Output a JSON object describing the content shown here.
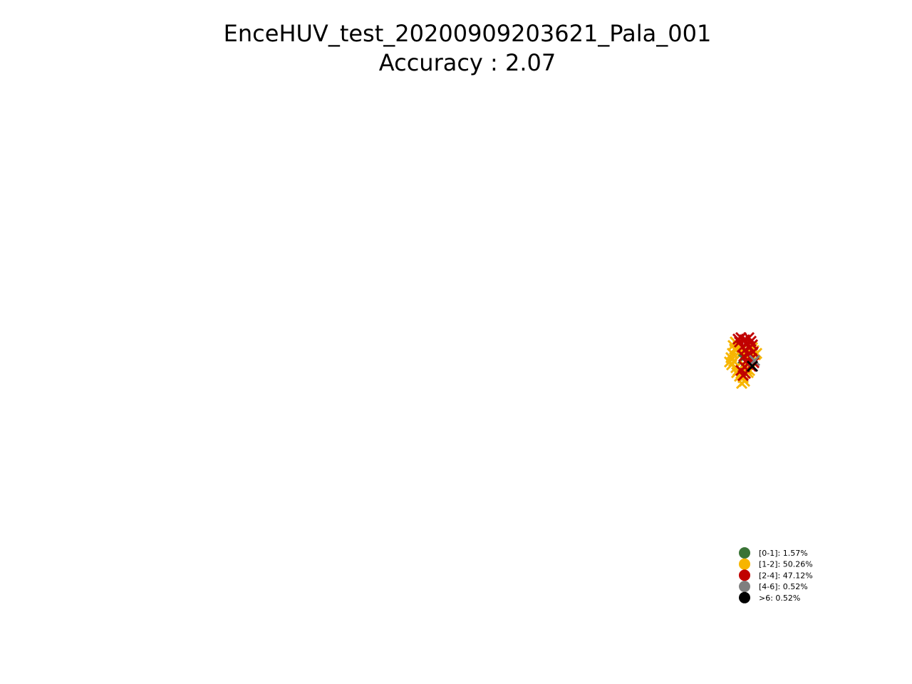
{
  "chart_data": {
    "type": "scatter",
    "title": "EnceHUV_test_20200909203621_Pala_001",
    "subtitle": "Accuracy : 2.07",
    "xlabel": "",
    "ylabel": "",
    "grid": false,
    "axes_visible": false,
    "legend_placement": "bottom-right",
    "legend": [
      {
        "label": "[0-1]: 1.57%",
        "color": "#3a7336"
      },
      {
        "label": "[1-2]: 50.26%",
        "color": "#f7b500"
      },
      {
        "label": "[2-4]: 47.12%",
        "color": "#c00000"
      },
      {
        "label": "[4-6]: 0.52%",
        "color": "#7f7f7f"
      },
      {
        "label": ">6: 0.52%",
        "color": "#000000"
      }
    ],
    "marker": "x",
    "series": [
      {
        "category": "[0-1]",
        "color": "#3a7336",
        "points": [
          [
            1043,
            503
          ],
          [
            1039,
            498
          ],
          [
            1047,
            508
          ]
        ]
      },
      {
        "category": "[1-2]",
        "color": "#f7b500",
        "points": [
          [
            1029,
            485
          ],
          [
            1031,
            490
          ],
          [
            1028,
            496
          ],
          [
            1026,
            502
          ],
          [
            1030,
            507
          ],
          [
            1027,
            512
          ],
          [
            1033,
            516
          ],
          [
            1036,
            520
          ],
          [
            1040,
            524
          ],
          [
            1043,
            530
          ],
          [
            1045,
            535
          ],
          [
            1038,
            528
          ],
          [
            1034,
            523
          ],
          [
            1052,
            504
          ],
          [
            1055,
            498
          ],
          [
            1058,
            492
          ],
          [
            1060,
            498
          ],
          [
            1048,
            518
          ],
          [
            1050,
            523
          ],
          [
            1046,
            514
          ],
          [
            1032,
            480
          ],
          [
            1036,
            486
          ],
          [
            1040,
            492
          ],
          [
            1056,
            488
          ],
          [
            1062,
            496
          ],
          [
            1024,
            508
          ],
          [
            1041,
            538
          ],
          [
            1052,
            520
          ]
        ]
      },
      {
        "category": "[2-4]",
        "color": "#c00000",
        "points": [
          [
            1040,
            474
          ],
          [
            1045,
            477
          ],
          [
            1051,
            474
          ],
          [
            1054,
            479
          ],
          [
            1048,
            483
          ],
          [
            1042,
            487
          ],
          [
            1046,
            491
          ],
          [
            1052,
            488
          ],
          [
            1057,
            494
          ],
          [
            1050,
            497
          ],
          [
            1044,
            500
          ],
          [
            1055,
            503
          ],
          [
            1058,
            509
          ],
          [
            1050,
            511
          ],
          [
            1045,
            515
          ],
          [
            1040,
            520
          ],
          [
            1046,
            524
          ],
          [
            1038,
            480
          ],
          [
            1036,
            476
          ],
          [
            1056,
            484
          ],
          [
            1049,
            505
          ],
          [
            1043,
            527
          ],
          [
            1054,
            514
          ]
        ]
      },
      {
        "category": "[4-6]",
        "color": "#7f7f7f",
        "points": [
          [
            1059,
            506
          ]
        ]
      },
      {
        "category": ">6",
        "color": "#000000",
        "points": [
          [
            1056,
            514
          ]
        ]
      }
    ]
  }
}
